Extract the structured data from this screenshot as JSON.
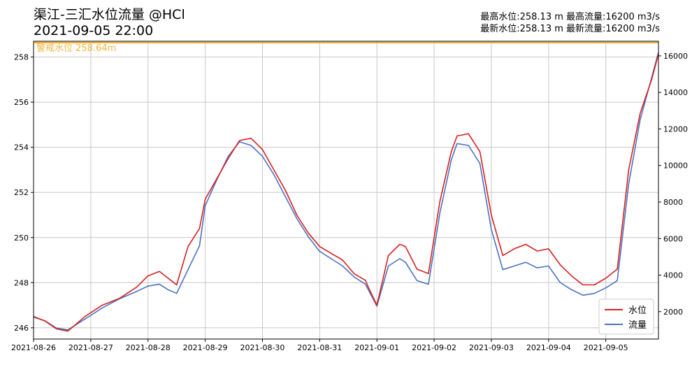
{
  "header": {
    "title": "渠江-三汇水位流量 @HCl",
    "datetime": "2021-09-05 22:00",
    "stats_line1": "最高水位:258.13 m 最高流量:16200 m3/s",
    "stats_line2": "最新水位:258.13 m 最新流量:16200 m3/s"
  },
  "chart_data": {
    "type": "line",
    "x_ticks": [
      "2021-08-26",
      "2021-08-27",
      "2021-08-28",
      "2021-08-29",
      "2021-08-30",
      "2021-08-31",
      "2021-09-01",
      "2021-09-02",
      "2021-09-03",
      "2021-09-04",
      "2021-09-05"
    ],
    "xlim": [
      "2021-08-26 00:00",
      "2021-09-05 22:00"
    ],
    "y_left": {
      "label": "",
      "lim": [
        245.5,
        258.7
      ],
      "ticks": [
        246,
        248,
        250,
        252,
        254,
        256,
        258
      ]
    },
    "y_right": {
      "label": "",
      "lim": [
        500,
        16800
      ],
      "ticks": [
        2000,
        4000,
        6000,
        8000,
        10000,
        12000,
        14000,
        16000
      ]
    },
    "grid": true,
    "legend": "bottom-right",
    "warning_line": {
      "label": "警戒水位 258.64m",
      "value": 258.64,
      "color": "#f5a623"
    },
    "series": [
      {
        "name": "水位",
        "axis": "left",
        "color": "#d62020",
        "x_days": [
          0,
          0.2,
          0.4,
          0.6,
          0.9,
          1.2,
          1.5,
          1.8,
          2.0,
          2.2,
          2.35,
          2.5,
          2.7,
          2.9,
          3.0,
          3.2,
          3.4,
          3.6,
          3.8,
          4.0,
          4.2,
          4.4,
          4.6,
          4.8,
          5.0,
          5.2,
          5.4,
          5.6,
          5.8,
          5.85,
          6.0,
          6.2,
          6.4,
          6.5,
          6.7,
          6.9,
          7.1,
          7.3,
          7.4,
          7.6,
          7.8,
          8.0,
          8.2,
          8.4,
          8.6,
          8.8,
          9.0,
          9.2,
          9.4,
          9.6,
          9.8,
          10.0,
          10.2,
          10.4,
          10.6,
          10.8,
          10.92
        ],
        "values": [
          246.5,
          246.3,
          245.95,
          245.85,
          246.5,
          247.0,
          247.3,
          247.8,
          248.3,
          248.5,
          248.2,
          247.9,
          249.6,
          250.4,
          251.7,
          252.6,
          253.5,
          254.3,
          254.4,
          253.9,
          253.0,
          252.1,
          251.0,
          250.2,
          249.6,
          249.3,
          249.0,
          248.4,
          248.1,
          247.8,
          247.0,
          249.2,
          249.7,
          249.6,
          248.6,
          248.4,
          251.6,
          253.8,
          254.5,
          254.6,
          253.8,
          251.0,
          249.2,
          249.5,
          249.7,
          249.4,
          249.5,
          248.8,
          248.3,
          247.9,
          247.9,
          248.2,
          248.6,
          253.0,
          255.5,
          257.0,
          258.13
        ]
      },
      {
        "name": "流量",
        "axis": "right",
        "color": "#4a72c4",
        "x_days": [
          0,
          0.2,
          0.4,
          0.6,
          0.9,
          1.2,
          1.5,
          1.8,
          2.0,
          2.2,
          2.35,
          2.5,
          2.7,
          2.9,
          3.0,
          3.2,
          3.4,
          3.6,
          3.8,
          4.0,
          4.2,
          4.4,
          4.6,
          4.8,
          5.0,
          5.2,
          5.4,
          5.6,
          5.8,
          5.85,
          6.0,
          6.2,
          6.4,
          6.5,
          6.7,
          6.9,
          7.1,
          7.3,
          7.4,
          7.6,
          7.8,
          8.0,
          8.2,
          8.4,
          8.6,
          8.8,
          9.0,
          9.2,
          9.4,
          9.6,
          9.8,
          10.0,
          10.2,
          10.4,
          10.6,
          10.8,
          10.92
        ],
        "values": [
          1700,
          1500,
          1100,
          1000,
          1600,
          2200,
          2700,
          3100,
          3400,
          3500,
          3200,
          3000,
          4300,
          5600,
          7800,
          9200,
          10500,
          11300,
          11100,
          10500,
          9500,
          8300,
          7100,
          6100,
          5300,
          4900,
          4500,
          3900,
          3500,
          3200,
          2300,
          4500,
          4900,
          4700,
          3700,
          3500,
          7400,
          10300,
          11200,
          11100,
          10100,
          6500,
          4300,
          4500,
          4700,
          4400,
          4500,
          3600,
          3200,
          2900,
          3000,
          3300,
          3700,
          9000,
          12500,
          14800,
          16200
        ]
      }
    ]
  }
}
